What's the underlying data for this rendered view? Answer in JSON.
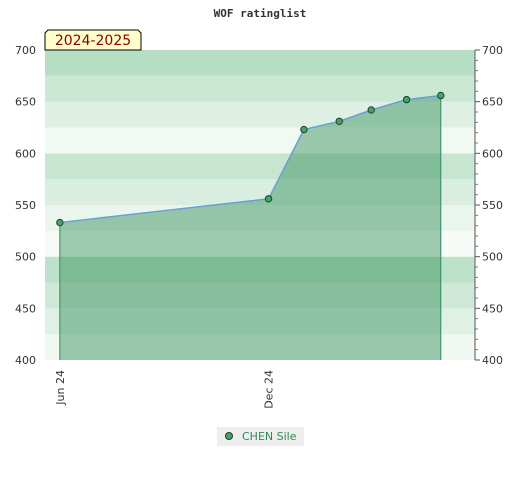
{
  "chart_data": {
    "type": "area",
    "title": "WOF ratinglist",
    "season_label": "2024-2025",
    "x_ticks": [
      {
        "label": "Jun 24",
        "date": "2024-06-01"
      },
      {
        "label": "Dec 24",
        "date": "2024-12-01"
      }
    ],
    "x_range": [
      "2024-05-19",
      "2025-05-31"
    ],
    "ylim": [
      400,
      700
    ],
    "y_ticks": [
      400,
      450,
      500,
      550,
      600,
      650,
      700
    ],
    "grid": false,
    "series": [
      {
        "name": "CHEN Sile",
        "color": "#2e8b57",
        "points": [
          {
            "x": "2024-06-01",
            "y": 533
          },
          {
            "x": "2024-12-01",
            "y": 556
          },
          {
            "x": "2025-01-01",
            "y": 623
          },
          {
            "x": "2025-02-01",
            "y": 631
          },
          {
            "x": "2025-03-01",
            "y": 642
          },
          {
            "x": "2025-04-01",
            "y": 652
          },
          {
            "x": "2025-05-01",
            "y": 656
          }
        ]
      }
    ],
    "legend_position": "bottom-center"
  }
}
